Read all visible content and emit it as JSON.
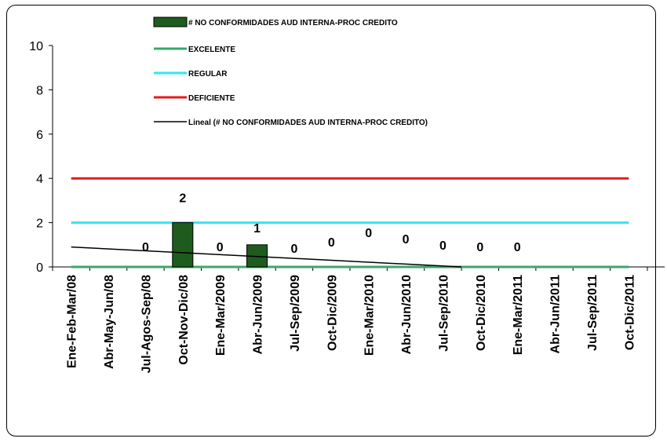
{
  "chart_data": {
    "type": "bar",
    "categories": [
      "Ene-Feb-Mar/08",
      "Abr-May-Jun/08",
      "Jul-Agos-Sep/08",
      "Oct-Nov-Dic/08",
      "Ene-Mar/2009",
      "Abr-Jun/2009",
      "Jul-Sep/2009",
      "Oct-Dic/2009",
      "Ene-Mar/2010",
      "Abr-Jun/2010",
      "Jul-Sep/2010",
      "Oct-Dic/2010",
      "Ene-Mar/2011",
      "Abr-Jun/2011",
      "Jul-Sep/2011",
      "Oct-Dic/2011"
    ],
    "ylim": [
      0,
      10
    ],
    "yticks": [
      0,
      2,
      4,
      6,
      8,
      10
    ],
    "series": [
      {
        "name": "# NO CONFORMIDADES AUD INTERNA-PROC CREDITO",
        "kind": "bar",
        "color": "#1e5c1e",
        "values": [
          0,
          0,
          0,
          2,
          0,
          1,
          0,
          0,
          0,
          0,
          0,
          0,
          0,
          null,
          null,
          null
        ],
        "data_labels": [
          "",
          "",
          "0",
          "2",
          "0",
          "1",
          "0",
          "0",
          "0",
          "0",
          "0",
          "0",
          "0",
          "",
          "",
          ""
        ]
      },
      {
        "name": "EXCELENTE",
        "kind": "line",
        "color": "#3aa76d",
        "values": [
          0,
          0,
          0,
          0,
          0,
          0,
          0,
          0,
          0,
          0,
          0,
          0,
          0,
          0,
          0,
          0
        ]
      },
      {
        "name": "REGULAR",
        "kind": "line",
        "color": "#33e6ee",
        "values": [
          2,
          2,
          2,
          2,
          2,
          2,
          2,
          2,
          2,
          2,
          2,
          2,
          2,
          2,
          2,
          2
        ]
      },
      {
        "name": "DEFICIENTE",
        "kind": "line",
        "color": "#e31b1b",
        "values": [
          4,
          4,
          4,
          4,
          4,
          4,
          4,
          4,
          4,
          4,
          4,
          4,
          4,
          4,
          4,
          4
        ]
      },
      {
        "name": "Lineal (# NO CONFORMIDADES AUD INTERNA-PROC CREDITO)",
        "kind": "trendline",
        "color": "#000000",
        "start": 0.9,
        "end": 0.0,
        "end_index": 10.5
      }
    ],
    "legend_position": "top-center",
    "grid": false
  }
}
